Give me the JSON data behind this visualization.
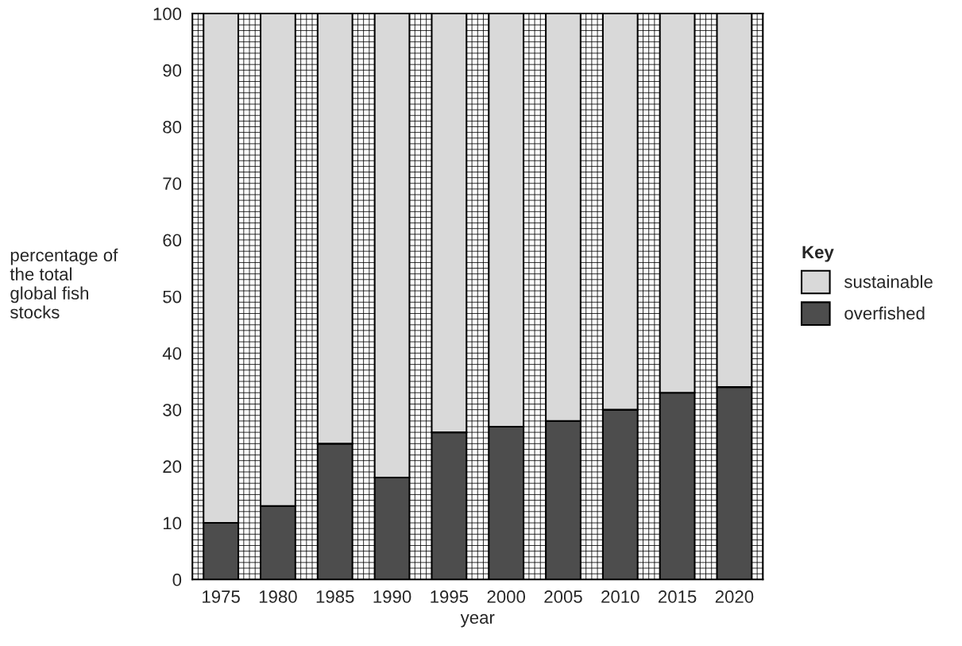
{
  "chart_data": {
    "type": "bar",
    "stacked": true,
    "xlabel": "year",
    "ylabel": "percentage of\nthe total\nglobal fish\nstocks",
    "legend_title": "Key",
    "categories": [
      "1975",
      "1980",
      "1985",
      "1990",
      "1995",
      "2000",
      "2005",
      "2010",
      "2015",
      "2020"
    ],
    "series": [
      {
        "name": "overfished",
        "color": "#4d4d4d",
        "values": [
          10,
          13,
          24,
          18,
          26,
          27,
          28,
          30,
          33,
          34
        ]
      },
      {
        "name": "sustainable",
        "color": "#d9d9d9",
        "values": [
          90,
          87,
          76,
          82,
          74,
          73,
          72,
          70,
          67,
          66
        ]
      }
    ],
    "ylim": [
      0,
      100
    ],
    "yticks": [
      0,
      10,
      20,
      30,
      40,
      50,
      60,
      70,
      80,
      90,
      100
    ],
    "grid": true,
    "legend": "right"
  }
}
